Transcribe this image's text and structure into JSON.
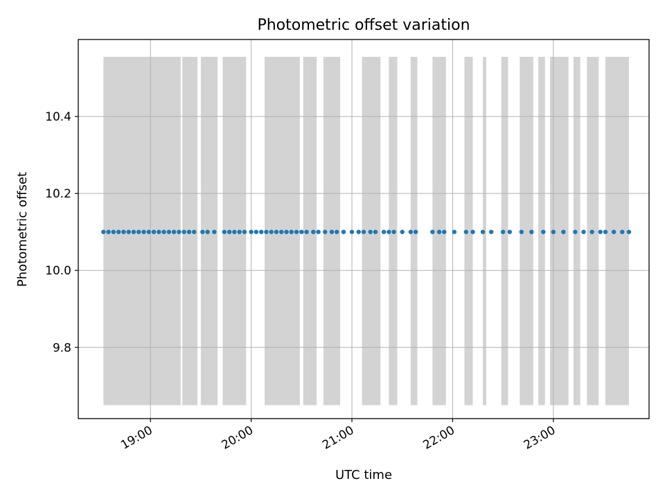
{
  "chart_data": {
    "type": "scatter",
    "title": "Photometric offset variation",
    "xlabel": "UTC time",
    "ylabel": "Photometric offset",
    "x_unit": "UTC time (HH:MM)",
    "xlim": [
      "18:17",
      "23:57"
    ],
    "ylim": [
      9.615,
      10.6
    ],
    "grid": true,
    "x_ticks": [
      "19:00",
      "20:00",
      "21:00",
      "22:00",
      "23:00"
    ],
    "y_ticks": [
      9.8,
      10.0,
      10.2,
      10.4
    ],
    "y_tick_labels": [
      "9.8",
      "10.0",
      "10.2",
      "10.4"
    ],
    "band_range": [
      9.65,
      10.555
    ],
    "colors": {
      "points": "#1f77b4",
      "bands": "#d3d3d3",
      "grid": "#b0b0b0"
    },
    "bands": [
      [
        "18:32",
        "19:18"
      ],
      [
        "19:19",
        "19:28"
      ],
      [
        "19:30",
        "19:40"
      ],
      [
        "19:43",
        "19:57"
      ],
      [
        "20:08",
        "20:29"
      ],
      [
        "20:31",
        "20:39"
      ],
      [
        "20:43",
        "20:53"
      ],
      [
        "21:06",
        "21:17"
      ],
      [
        "21:22",
        "21:27"
      ],
      [
        "21:35",
        "21:39"
      ],
      [
        "21:48",
        "21:56"
      ],
      [
        "22:07",
        "22:12"
      ],
      [
        "22:18",
        "22:20"
      ],
      [
        "22:29",
        "22:33"
      ],
      [
        "22:40",
        "22:48"
      ],
      [
        "22:51",
        "22:55"
      ],
      [
        "22:58",
        "23:09"
      ],
      [
        "23:12",
        "23:16"
      ],
      [
        "23:20",
        "23:27"
      ],
      [
        "23:31",
        "23:45"
      ]
    ],
    "series": [
      {
        "y_value": 10.1,
        "x": [
          "18:32",
          "18:35",
          "18:38",
          "18:41",
          "18:44",
          "18:47",
          "18:50",
          "18:53",
          "18:56",
          "18:59",
          "19:02",
          "19:05",
          "19:08",
          "19:11",
          "19:14",
          "19:17",
          "19:20",
          "19:23",
          "19:26",
          "19:31",
          "19:34",
          "19:38",
          "19:44",
          "19:47",
          "19:50",
          "19:53",
          "19:56",
          "20:00",
          "20:03",
          "20:06",
          "20:09",
          "20:12",
          "20:15",
          "20:18",
          "20:21",
          "20:24",
          "20:27",
          "20:30",
          "20:33",
          "20:37",
          "20:40",
          "20:44",
          "20:48",
          "20:51",
          "20:55",
          "21:00",
          "21:04",
          "21:07",
          "21:11",
          "21:14",
          "21:19",
          "21:22",
          "21:25",
          "21:30",
          "21:35",
          "21:38",
          "21:48",
          "21:52",
          "21:55",
          "22:01",
          "22:08",
          "22:12",
          "22:18",
          "22:23",
          "22:30",
          "22:34",
          "22:41",
          "22:47",
          "22:54",
          "23:00",
          "23:06",
          "23:13",
          "23:18",
          "23:23",
          "23:28",
          "23:31",
          "23:36",
          "23:41",
          "23:45"
        ]
      }
    ]
  }
}
